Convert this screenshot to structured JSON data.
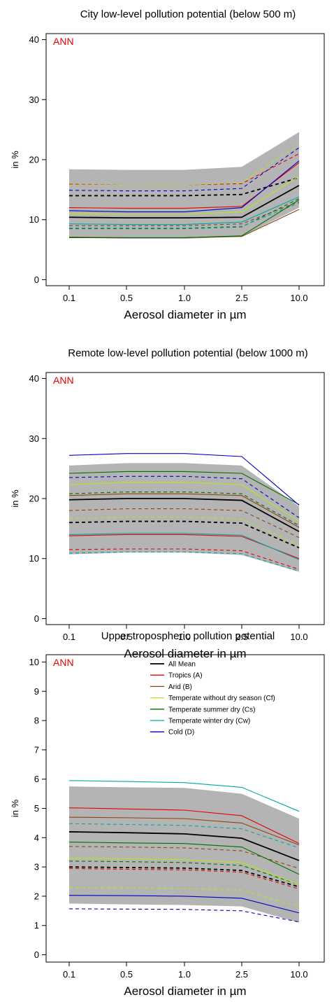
{
  "colors": {
    "all_mean": "#000000",
    "tropics": "#e60000",
    "arid": "#8b4513",
    "temperate_no_dry": "#b5e61d",
    "temperate_summer_dry": "#007000",
    "temperate_winter_dry": "#00a8a8",
    "cold": "#0000c8",
    "spread_band": "#b4b4b4"
  },
  "chart_data": [
    {
      "type": "line",
      "title": "City low-level pollution potential (below 500 m)",
      "annotation": "ANN",
      "xlabel": "Aerosol diameter in µm",
      "ylabel": "in %",
      "categories": [
        "0.1",
        "0.5",
        "1.0",
        "2.5",
        "10.0"
      ],
      "ylim": [
        -1,
        41
      ],
      "yticks": [
        "0",
        "10",
        "20",
        "30",
        "40"
      ],
      "band": {
        "lower": [
          7.0,
          6.8,
          6.8,
          7.2,
          12.0
        ],
        "upper": [
          18.4,
          18.3,
          18.3,
          18.8,
          24.6
        ]
      },
      "series": [
        {
          "name": "All Mean",
          "key": "all_mean",
          "values": [
            10.4,
            10.3,
            10.3,
            10.4,
            15.7
          ],
          "dashed_values": [
            14.0,
            14.0,
            14.0,
            14.2,
            17.0
          ]
        },
        {
          "name": "Tropics (A)",
          "key": "tropics",
          "values": [
            12.0,
            11.9,
            11.9,
            12.2,
            19.5
          ],
          "dashed_values": [
            15.9,
            15.8,
            15.8,
            16.0,
            21.0
          ]
        },
        {
          "name": "Arid (B)",
          "key": "arid",
          "values": [
            7.1,
            7.0,
            7.0,
            7.2,
            11.7
          ],
          "dashed_values": [
            9.0,
            9.0,
            9.0,
            9.3,
            13.0
          ]
        },
        {
          "name": "Temperate without dry season (Cf)",
          "key": "temperate_no_dry",
          "values": [
            11.0,
            10.9,
            10.9,
            11.3,
            17.2
          ],
          "dashed_values": [
            15.8,
            15.8,
            15.8,
            16.2,
            22.5
          ]
        },
        {
          "name": "Temperate summer dry (Cs)",
          "key": "temperate_summer_dry",
          "values": [
            7.0,
            7.0,
            7.0,
            7.3,
            13.3
          ],
          "dashed_values": [
            8.5,
            8.5,
            8.5,
            8.8,
            13.5
          ]
        },
        {
          "name": "Temperate winter dry (Cw)",
          "key": "temperate_winter_dry",
          "values": [
            9.3,
            9.2,
            9.2,
            9.6,
            13.8
          ],
          "dashed_values": [
            8.6,
            8.6,
            8.6,
            8.9,
            12.8
          ]
        },
        {
          "name": "Cold (D)",
          "key": "cold",
          "values": [
            11.5,
            11.3,
            11.3,
            12.0,
            19.8
          ],
          "dashed_values": [
            14.9,
            14.8,
            14.8,
            15.2,
            22.0
          ]
        }
      ]
    },
    {
      "type": "line",
      "title": "Remote low-level pollution potential (below 1000 m)",
      "annotation": "ANN",
      "xlabel": "Aerosol diameter in µm",
      "ylabel": "in %",
      "categories": [
        "0.1",
        "0.5",
        "1.0",
        "2.5",
        "10.0"
      ],
      "ylim": [
        -1,
        41
      ],
      "yticks": [
        "0",
        "10",
        "20",
        "30",
        "40"
      ],
      "band": {
        "lower": [
          10.7,
          11.0,
          11.0,
          10.6,
          7.8
        ],
        "upper": [
          25.5,
          25.9,
          25.9,
          25.5,
          18.7
        ]
      },
      "series": [
        {
          "name": "All Mean",
          "key": "all_mean",
          "values": [
            19.8,
            20.0,
            20.0,
            19.7,
            14.5
          ],
          "dashed_values": [
            16.0,
            16.2,
            16.2,
            15.9,
            11.8
          ]
        },
        {
          "name": "Tropics (A)",
          "key": "tropics",
          "values": [
            13.8,
            14.0,
            14.0,
            13.7,
            10.0
          ],
          "dashed_values": [
            11.5,
            11.6,
            11.6,
            11.3,
            8.2
          ]
        },
        {
          "name": "Arid (B)",
          "key": "arid",
          "values": [
            20.5,
            20.8,
            20.8,
            20.5,
            15.2
          ],
          "dashed_values": [
            18.0,
            18.3,
            18.3,
            18.0,
            13.5
          ]
        },
        {
          "name": "Temperate without dry season (Cf)",
          "key": "temperate_no_dry",
          "values": [
            22.3,
            22.7,
            22.7,
            22.3,
            16.2
          ],
          "dashed_values": [
            16.7,
            16.9,
            16.9,
            16.6,
            12.2
          ]
        },
        {
          "name": "Temperate summer dry (Cs)",
          "key": "temperate_summer_dry",
          "values": [
            24.2,
            24.5,
            24.5,
            24.2,
            19.0
          ],
          "dashed_values": [
            20.8,
            21.1,
            21.1,
            20.8,
            15.5
          ]
        },
        {
          "name": "Temperate winter dry (Cw)",
          "key": "temperate_winter_dry",
          "values": [
            14.0,
            14.2,
            14.2,
            13.9,
            9.8
          ],
          "dashed_values": [
            10.9,
            11.1,
            11.1,
            10.8,
            7.9
          ]
        },
        {
          "name": "Cold (D)",
          "key": "cold",
          "values": [
            27.2,
            27.5,
            27.5,
            27.0,
            18.9
          ],
          "dashed_values": [
            23.5,
            23.7,
            23.7,
            23.3,
            16.8
          ]
        }
      ]
    },
    {
      "type": "line",
      "title": "Upper tropospheric pollution potential",
      "annotation": "ANN",
      "xlabel": "Aerosol diameter in µm",
      "ylabel": "in %",
      "categories": [
        "0.1",
        "0.5",
        "1.0",
        "2.5",
        "10.0"
      ],
      "ylim": [
        -0.25,
        10.25
      ],
      "yticks": [
        "0",
        "1",
        "2",
        "3",
        "4",
        "5",
        "6",
        "7",
        "8",
        "9",
        "10"
      ],
      "legend": {
        "position": "top-right"
      },
      "band": {
        "lower": [
          1.75,
          1.72,
          1.7,
          1.65,
          1.1
        ],
        "upper": [
          5.75,
          5.72,
          5.7,
          5.5,
          4.65
        ]
      },
      "series": [
        {
          "name": "All Mean",
          "key": "all_mean",
          "values": [
            4.2,
            4.17,
            4.13,
            3.98,
            3.22
          ],
          "dashed_values": [
            3.0,
            2.98,
            2.96,
            2.88,
            2.32
          ]
        },
        {
          "name": "Tropics (A)",
          "key": "tropics",
          "values": [
            5.02,
            4.98,
            4.94,
            4.75,
            3.8
          ],
          "dashed_values": [
            2.95,
            2.92,
            2.9,
            2.82,
            2.25
          ]
        },
        {
          "name": "Arid (B)",
          "key": "arid",
          "values": [
            4.7,
            4.68,
            4.65,
            4.5,
            3.75
          ],
          "dashed_values": [
            3.7,
            3.68,
            3.65,
            3.55,
            2.95
          ]
        },
        {
          "name": "Temperate without dry season (Cf)",
          "key": "temperate_no_dry",
          "values": [
            3.3,
            3.28,
            3.25,
            3.15,
            2.4
          ],
          "dashed_values": [
            2.3,
            2.28,
            2.26,
            2.2,
            1.65
          ]
        },
        {
          "name": "Temperate summer dry (Cs)",
          "key": "temperate_summer_dry",
          "values": [
            3.85,
            3.82,
            3.8,
            3.68,
            2.75
          ],
          "dashed_values": [
            3.2,
            3.18,
            3.15,
            3.05,
            2.4
          ]
        },
        {
          "name": "Temperate winter dry (Cw)",
          "key": "temperate_winter_dry",
          "values": [
            5.95,
            5.92,
            5.88,
            5.72,
            4.9
          ],
          "dashed_values": [
            4.48,
            4.45,
            4.42,
            4.3,
            3.65
          ]
        },
        {
          "name": "Cold (D)",
          "key": "cold",
          "values": [
            2.03,
            2.02,
            2.0,
            1.93,
            1.43
          ],
          "dashed_values": [
            1.57,
            1.56,
            1.55,
            1.5,
            1.12
          ]
        }
      ]
    }
  ]
}
